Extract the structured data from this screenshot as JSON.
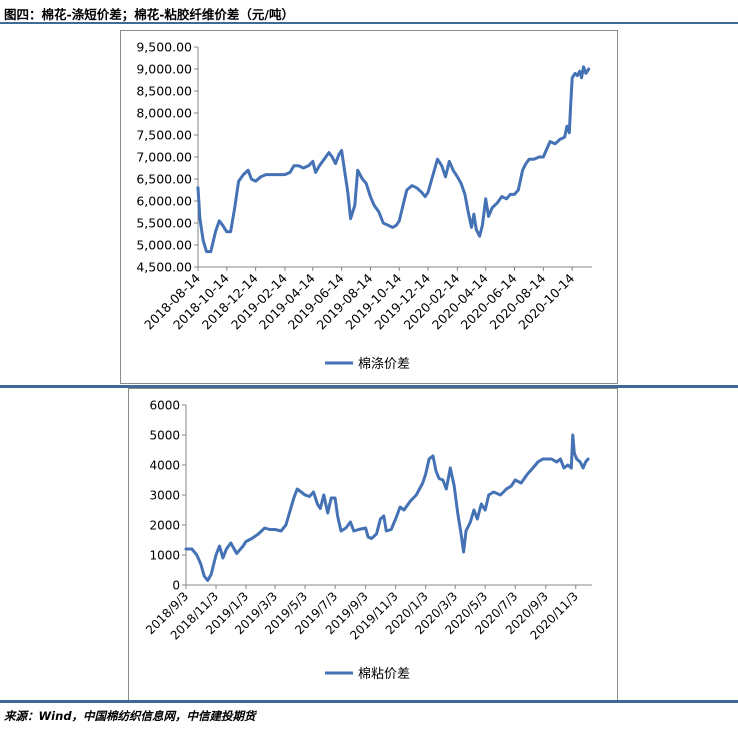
{
  "figure_title": "图四：棉花-涤短价差；棉花-粘胶纤维价差（元/吨）",
  "source_note": "来源：Wind，中国棉纺织信息网，中信建投期货",
  "colors": {
    "line": "#4472b4",
    "rule": "#3f6a94",
    "axis": "#888888"
  },
  "chart_data": [
    {
      "type": "line",
      "title": "",
      "xlabel": "",
      "ylabel": "",
      "ylim": [
        4500,
        9500
      ],
      "grid": false,
      "legend": "bottom-center",
      "y_ticks": [
        "9,500.00",
        "9,000.00",
        "8,500.00",
        "8,000.00",
        "7,500.00",
        "7,000.00",
        "6,500.00",
        "6,000.00",
        "5,500.00",
        "5,000.00",
        "4,500.00"
      ],
      "x_ticks": [
        "2018-08-14",
        "2018-10-14",
        "2018-12-14",
        "2019-02-14",
        "2019-04-14",
        "2019-06-14",
        "2019-08-14",
        "2019-10-14",
        "2019-12-14",
        "2020-02-14",
        "2020-04-14",
        "2020-06-14",
        "2020-08-14",
        "2020-10-14"
      ],
      "series": [
        {
          "name": "棉涤价差",
          "points": [
            [
              "2018-08-14",
              6300
            ],
            [
              "2018-08-18",
              5600
            ],
            [
              "2018-08-25",
              5100
            ],
            [
              "2018-09-01",
              4850
            ],
            [
              "2018-09-10",
              4850
            ],
            [
              "2018-09-20",
              5300
            ],
            [
              "2018-09-28",
              5550
            ],
            [
              "2018-10-05",
              5450
            ],
            [
              "2018-10-14",
              5300
            ],
            [
              "2018-10-22",
              5300
            ],
            [
              "2018-10-30",
              5800
            ],
            [
              "2018-11-08",
              6450
            ],
            [
              "2018-11-18",
              6600
            ],
            [
              "2018-11-28",
              6700
            ],
            [
              "2018-12-05",
              6500
            ],
            [
              "2018-12-14",
              6450
            ],
            [
              "2018-12-25",
              6550
            ],
            [
              "2019-01-05",
              6600
            ],
            [
              "2019-01-20",
              6600
            ],
            [
              "2019-02-05",
              6600
            ],
            [
              "2019-02-14",
              6600
            ],
            [
              "2019-02-25",
              6650
            ],
            [
              "2019-03-05",
              6800
            ],
            [
              "2019-03-15",
              6800
            ],
            [
              "2019-03-25",
              6750
            ],
            [
              "2019-04-05",
              6800
            ],
            [
              "2019-04-14",
              6900
            ],
            [
              "2019-04-20",
              6650
            ],
            [
              "2019-04-28",
              6800
            ],
            [
              "2019-05-08",
              6950
            ],
            [
              "2019-05-18",
              7100
            ],
            [
              "2019-05-25",
              7000
            ],
            [
              "2019-06-01",
              6850
            ],
            [
              "2019-06-08",
              7050
            ],
            [
              "2019-06-14",
              7150
            ],
            [
              "2019-06-20",
              6700
            ],
            [
              "2019-06-27",
              6200
            ],
            [
              "2019-07-03",
              5600
            ],
            [
              "2019-07-12",
              5900
            ],
            [
              "2019-07-18",
              6700
            ],
            [
              "2019-07-28",
              6500
            ],
            [
              "2019-08-05",
              6400
            ],
            [
              "2019-08-14",
              6100
            ],
            [
              "2019-08-22",
              5900
            ],
            [
              "2019-09-01",
              5750
            ],
            [
              "2019-09-10",
              5500
            ],
            [
              "2019-09-20",
              5450
            ],
            [
              "2019-09-30",
              5400
            ],
            [
              "2019-10-08",
              5450
            ],
            [
              "2019-10-14",
              5550
            ],
            [
              "2019-10-22",
              5900
            ],
            [
              "2019-10-30",
              6250
            ],
            [
              "2019-11-10",
              6350
            ],
            [
              "2019-11-20",
              6300
            ],
            [
              "2019-11-30",
              6200
            ],
            [
              "2019-12-08",
              6100
            ],
            [
              "2019-12-14",
              6200
            ],
            [
              "2019-12-22",
              6500
            ],
            [
              "2020-01-03",
              6950
            ],
            [
              "2020-01-12",
              6800
            ],
            [
              "2020-01-20",
              6550
            ],
            [
              "2020-01-28",
              6900
            ],
            [
              "2020-02-05",
              6700
            ],
            [
              "2020-02-14",
              6550
            ],
            [
              "2020-02-22",
              6400
            ],
            [
              "2020-03-01",
              6150
            ],
            [
              "2020-03-08",
              5750
            ],
            [
              "2020-03-15",
              5400
            ],
            [
              "2020-03-20",
              5700
            ],
            [
              "2020-03-25",
              5350
            ],
            [
              "2020-04-01",
              5200
            ],
            [
              "2020-04-07",
              5450
            ],
            [
              "2020-04-14",
              6050
            ],
            [
              "2020-04-20",
              5650
            ],
            [
              "2020-04-28",
              5850
            ],
            [
              "2020-05-08",
              5950
            ],
            [
              "2020-05-18",
              6100
            ],
            [
              "2020-05-28",
              6050
            ],
            [
              "2020-06-05",
              6150
            ],
            [
              "2020-06-14",
              6150
            ],
            [
              "2020-06-22",
              6250
            ],
            [
              "2020-07-01",
              6700
            ],
            [
              "2020-07-08",
              6850
            ],
            [
              "2020-07-15",
              6950
            ],
            [
              "2020-07-25",
              6950
            ],
            [
              "2020-08-05",
              7000
            ],
            [
              "2020-08-14",
              7000
            ],
            [
              "2020-08-20",
              7150
            ],
            [
              "2020-08-28",
              7350
            ],
            [
              "2020-09-08",
              7300
            ],
            [
              "2020-09-18",
              7400
            ],
            [
              "2020-09-28",
              7450
            ],
            [
              "2020-10-03",
              7700
            ],
            [
              "2020-10-08",
              7550
            ],
            [
              "2020-10-11",
              8200
            ],
            [
              "2020-10-14",
              8800
            ],
            [
              "2020-10-20",
              8900
            ],
            [
              "2020-10-25",
              8850
            ],
            [
              "2020-10-30",
              8950
            ],
            [
              "2020-11-03",
              8800
            ],
            [
              "2020-11-07",
              9050
            ],
            [
              "2020-11-12",
              8900
            ],
            [
              "2020-11-18",
              9000
            ]
          ]
        }
      ]
    },
    {
      "type": "line",
      "title": "",
      "xlabel": "",
      "ylabel": "",
      "ylim": [
        0,
        6000
      ],
      "grid": false,
      "legend": "bottom-center",
      "y_ticks": [
        "6000",
        "5000",
        "4000",
        "3000",
        "2000",
        "1000",
        "0"
      ],
      "x_ticks": [
        "2018/9/3",
        "2018/11/3",
        "2019/1/3",
        "2019/3/3",
        "2019/5/3",
        "2019/7/3",
        "2019/9/3",
        "2019/11/3",
        "2020/1/3",
        "2020/3/3",
        "2020/5/3",
        "2020/7/3",
        "2020/9/3",
        "2020/11/3"
      ],
      "series": [
        {
          "name": "棉粘价差",
          "points": [
            [
              "2018-09-03",
              1200
            ],
            [
              "2018-09-15",
              1200
            ],
            [
              "2018-09-25",
              1000
            ],
            [
              "2018-10-03",
              700
            ],
            [
              "2018-10-10",
              300
            ],
            [
              "2018-10-17",
              150
            ],
            [
              "2018-10-24",
              350
            ],
            [
              "2018-11-03",
              1000
            ],
            [
              "2018-11-10",
              1300
            ],
            [
              "2018-11-17",
              900
            ],
            [
              "2018-11-24",
              1200
            ],
            [
              "2018-12-03",
              1400
            ],
            [
              "2018-12-15",
              1050
            ],
            [
              "2018-12-28",
              1300
            ],
            [
              "2019-01-03",
              1450
            ],
            [
              "2019-01-15",
              1550
            ],
            [
              "2019-01-28",
              1700
            ],
            [
              "2019-02-10",
              1900
            ],
            [
              "2019-02-20",
              1850
            ],
            [
              "2019-03-03",
              1850
            ],
            [
              "2019-03-15",
              1800
            ],
            [
              "2019-03-25",
              2000
            ],
            [
              "2019-04-03",
              2500
            ],
            [
              "2019-04-10",
              2900
            ],
            [
              "2019-04-17",
              3200
            ],
            [
              "2019-04-25",
              3100
            ],
            [
              "2019-05-03",
              3000
            ],
            [
              "2019-05-12",
              2950
            ],
            [
              "2019-05-20",
              3100
            ],
            [
              "2019-05-28",
              2700
            ],
            [
              "2019-06-03",
              2550
            ],
            [
              "2019-06-10",
              3000
            ],
            [
              "2019-06-18",
              2400
            ],
            [
              "2019-06-25",
              2900
            ],
            [
              "2019-07-03",
              2900
            ],
            [
              "2019-07-08",
              2300
            ],
            [
              "2019-07-15",
              1800
            ],
            [
              "2019-07-25",
              1900
            ],
            [
              "2019-08-03",
              2100
            ],
            [
              "2019-08-10",
              1800
            ],
            [
              "2019-08-20",
              1850
            ],
            [
              "2019-09-03",
              1900
            ],
            [
              "2019-09-08",
              1600
            ],
            [
              "2019-09-15",
              1550
            ],
            [
              "2019-09-25",
              1700
            ],
            [
              "2019-10-03",
              2200
            ],
            [
              "2019-10-10",
              2300
            ],
            [
              "2019-10-15",
              1800
            ],
            [
              "2019-10-25",
              1850
            ],
            [
              "2019-11-03",
              2200
            ],
            [
              "2019-11-12",
              2600
            ],
            [
              "2019-11-20",
              2500
            ],
            [
              "2019-12-03",
              2800
            ],
            [
              "2019-12-15",
              3000
            ],
            [
              "2019-12-28",
              3400
            ],
            [
              "2020-01-03",
              3700
            ],
            [
              "2020-01-10",
              4200
            ],
            [
              "2020-01-18",
              4300
            ],
            [
              "2020-01-24",
              3800
            ],
            [
              "2020-01-30",
              3550
            ],
            [
              "2020-02-07",
              3500
            ],
            [
              "2020-02-14",
              3200
            ],
            [
              "2020-02-22",
              3900
            ],
            [
              "2020-03-01",
              3300
            ],
            [
              "2020-03-08",
              2400
            ],
            [
              "2020-03-15",
              1700
            ],
            [
              "2020-03-20",
              1100
            ],
            [
              "2020-03-25",
              1800
            ],
            [
              "2020-04-03",
              2100
            ],
            [
              "2020-04-10",
              2500
            ],
            [
              "2020-04-17",
              2200
            ],
            [
              "2020-04-25",
              2700
            ],
            [
              "2020-05-03",
              2500
            ],
            [
              "2020-05-10",
              3000
            ],
            [
              "2020-05-20",
              3100
            ],
            [
              "2020-06-03",
              3000
            ],
            [
              "2020-06-15",
              3200
            ],
            [
              "2020-06-25",
              3300
            ],
            [
              "2020-07-03",
              3500
            ],
            [
              "2020-07-15",
              3400
            ],
            [
              "2020-07-28",
              3700
            ],
            [
              "2020-08-08",
              3900
            ],
            [
              "2020-08-18",
              4100
            ],
            [
              "2020-08-28",
              4200
            ],
            [
              "2020-09-03",
              4200
            ],
            [
              "2020-09-15",
              4200
            ],
            [
              "2020-09-25",
              4100
            ],
            [
              "2020-10-03",
              4200
            ],
            [
              "2020-10-10",
              3900
            ],
            [
              "2020-10-18",
              4000
            ],
            [
              "2020-10-25",
              3900
            ],
            [
              "2020-10-28",
              5000
            ],
            [
              "2020-10-31",
              4400
            ],
            [
              "2020-11-05",
              4200
            ],
            [
              "2020-11-12",
              4100
            ],
            [
              "2020-11-18",
              3900
            ],
            [
              "2020-11-23",
              4100
            ],
            [
              "2020-11-28",
              4200
            ]
          ]
        }
      ]
    }
  ]
}
